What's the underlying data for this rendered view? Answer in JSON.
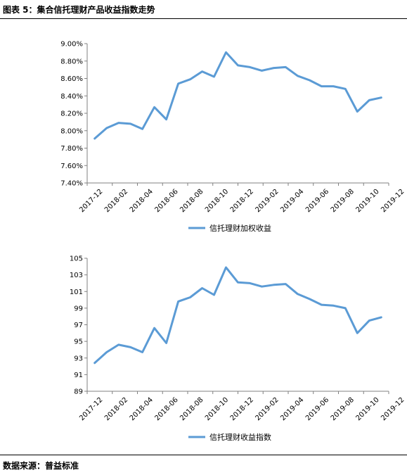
{
  "header": {
    "caption": "图表 5：集合信托理财产品收益指数走势"
  },
  "footer": {
    "source": "数据来源：普益标准"
  },
  "colors": {
    "series": "#5b9bd5",
    "axis": "#808080"
  },
  "chart_data": [
    {
      "type": "line",
      "x_tick_labels": [
        "2017-12",
        "2018-02",
        "2018-04",
        "2018-06",
        "2018-08",
        "2018-10",
        "2018-12",
        "2019-02",
        "2019-04",
        "2019-06",
        "2019-08",
        "2019-10",
        "2019-12"
      ],
      "y_tick_labels": [
        "7.40%",
        "7.60%",
        "7.80%",
        "8.00%",
        "8.20%",
        "8.40%",
        "8.60%",
        "8.80%",
        "9.00%"
      ],
      "ylim": [
        7.4,
        9.0
      ],
      "y_unit": "%",
      "grid": false,
      "legend_position": "bottom",
      "series": [
        {
          "name": "信托理财加权收益",
          "values": [
            7.91,
            8.03,
            8.09,
            8.08,
            8.02,
            8.27,
            8.13,
            8.54,
            8.59,
            8.68,
            8.62,
            8.9,
            8.75,
            8.73,
            8.69,
            8.72,
            8.73,
            8.63,
            8.58,
            8.51,
            8.51,
            8.48,
            8.22,
            8.35,
            8.38
          ]
        }
      ]
    },
    {
      "type": "line",
      "x_tick_labels": [
        "2017-12",
        "2018-02",
        "2018-04",
        "2018-06",
        "2018-08",
        "2018-10",
        "2018-12",
        "2019-02",
        "2019-04",
        "2019-06",
        "2019-08",
        "2019-10",
        "2019-12"
      ],
      "y_tick_labels": [
        "89",
        "91",
        "93",
        "95",
        "97",
        "99",
        "101",
        "103",
        "105"
      ],
      "ylim": [
        89,
        105
      ],
      "grid": false,
      "legend_position": "bottom",
      "series": [
        {
          "name": "信托理财收益指数",
          "values": [
            92.4,
            93.7,
            94.6,
            94.3,
            93.7,
            96.6,
            94.8,
            99.8,
            100.3,
            101.4,
            100.6,
            103.9,
            102.1,
            102.0,
            101.6,
            101.8,
            101.9,
            100.7,
            100.1,
            99.4,
            99.3,
            99.0,
            96.0,
            97.5,
            97.9
          ]
        }
      ]
    }
  ]
}
